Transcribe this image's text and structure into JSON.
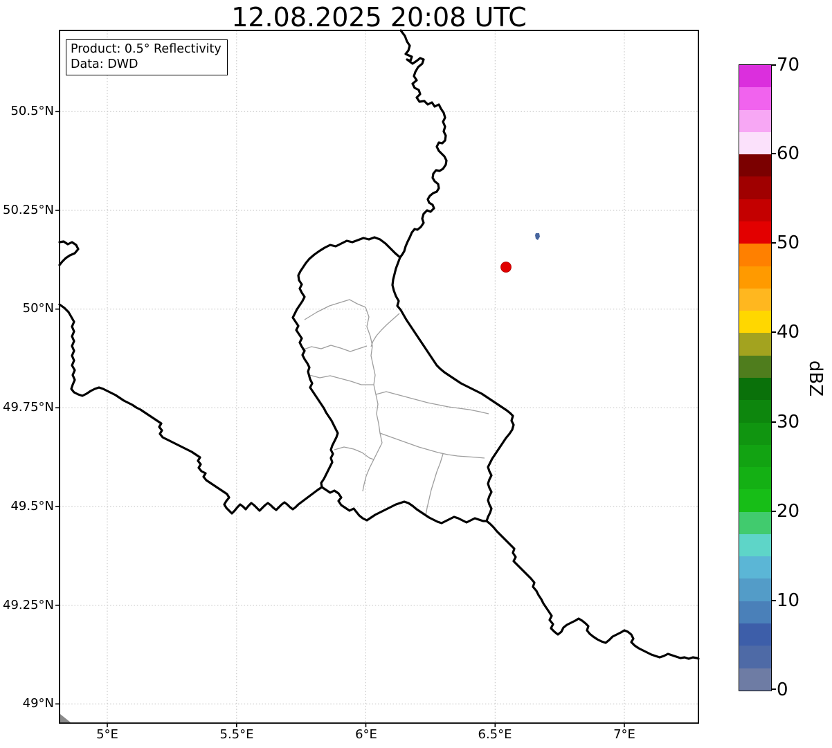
{
  "title": "12.08.2025 20:08 UTC",
  "info_box": {
    "product": "Product: 0.5° Reflectivity",
    "data_source": "Data: DWD"
  },
  "x_axis": {
    "ticks": [
      "5°E",
      "5.5°E",
      "6°E",
      "6.5°E",
      "7°E"
    ]
  },
  "y_axis": {
    "ticks": [
      "50.5°N",
      "50.25°N",
      "50°N",
      "49.75°N",
      "49.5°N",
      "49.25°N",
      "49°N"
    ]
  },
  "colorbar": {
    "label": "dBZ",
    "tick_labels": [
      "70",
      "60",
      "50",
      "40",
      "30",
      "20",
      "10",
      "0"
    ],
    "range_min": 0,
    "range_max": 70,
    "step_dbz": 2.5,
    "segments_bottom_to_top": [
      "#6E7CA4",
      "#4E6AA6",
      "#3D5EA9",
      "#4A80B9",
      "#539CC8",
      "#5BB6D6",
      "#5ED5C8",
      "#41CB6E",
      "#17BE17",
      "#14B014",
      "#12A312",
      "#109510",
      "#0D860D",
      "#0A710A",
      "#4F7D1D",
      "#A3A31F",
      "#FFD700",
      "#FFB71F",
      "#FF9A00",
      "#FF8000",
      "#E30000",
      "#C40000",
      "#A00000",
      "#7B0000",
      "#FBE1FB",
      "#F7A7F4",
      "#F163EE",
      "#DB2FDD"
    ]
  },
  "map": {
    "radar_marker_color": "#E10000",
    "echo_pixel_color": "#47659E",
    "country_border_color": "#000000",
    "district_border_color": "#9E9E9E",
    "grid_color": "#BFBFBF"
  },
  "chart_data": {
    "type": "map",
    "title": "12.08.2025 20:08 UTC",
    "product": "0.5° Reflectivity",
    "data_source": "DWD",
    "colorbar_label": "dBZ",
    "colorbar_range": [
      0,
      70
    ],
    "lon_ticks_deg_e": [
      5,
      5.5,
      6,
      6.5,
      7
    ],
    "lat_ticks_deg_n": [
      50.5,
      50.25,
      50,
      49.75,
      49.5,
      49.25,
      49
    ],
    "grid": "dotted",
    "markers": [
      {
        "name": "radar-site",
        "lon_e": 6.54,
        "lat_n": 50.1,
        "color": "#E10000"
      },
      {
        "name": "small-echo",
        "lon_e": 6.66,
        "lat_n": 50.19,
        "approx_dbz": 5,
        "color": "#47659E"
      }
    ]
  }
}
